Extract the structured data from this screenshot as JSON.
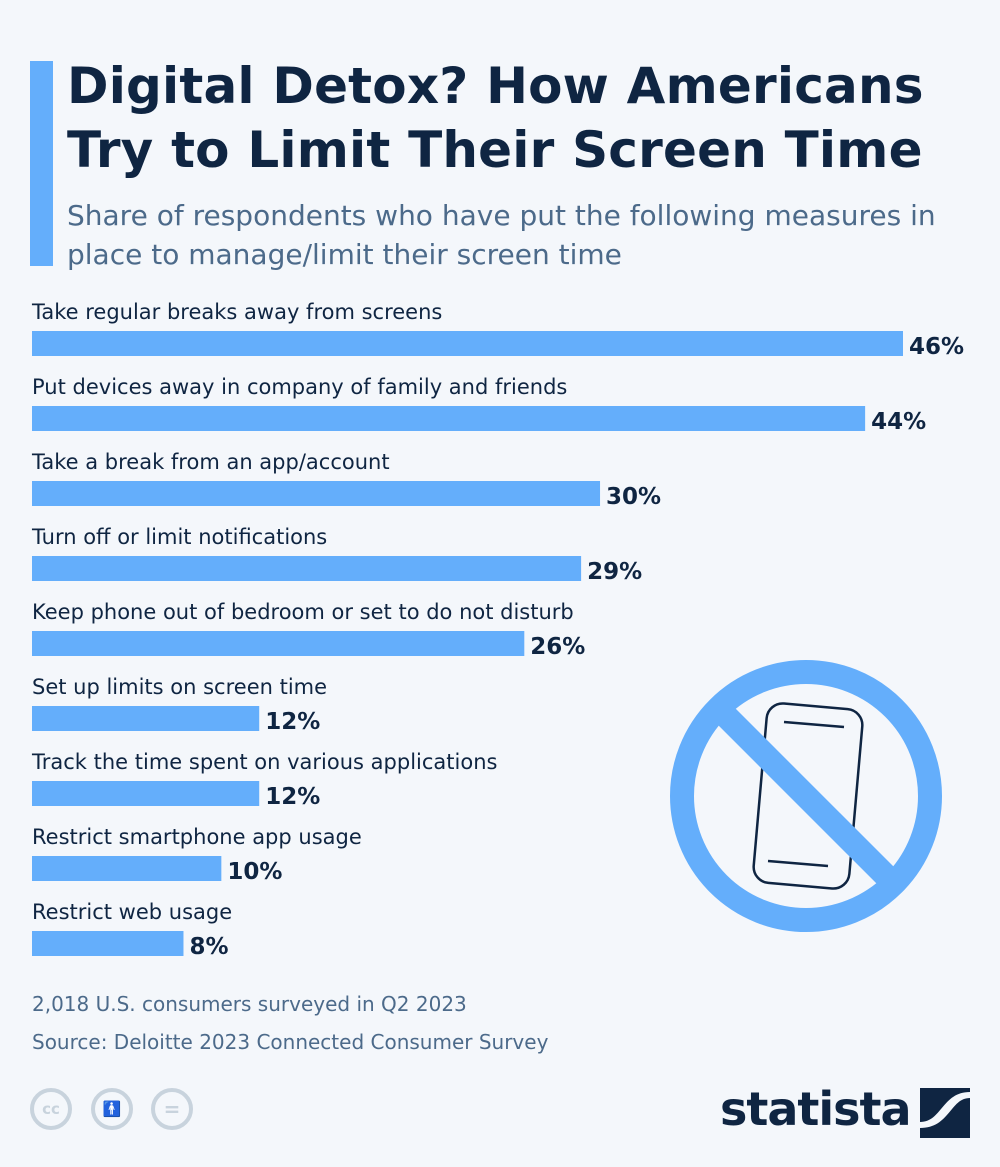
{
  "header": {
    "title": "Digital Detox? How Americans Try to Limit Their Screen Time",
    "subtitle": "Share of respondents who have put the following measures in place to manage/limit their screen time"
  },
  "chart_data": {
    "type": "bar",
    "orientation": "horizontal",
    "categories": [
      "Take regular breaks away from screens",
      "Put devices away in company of family and friends",
      "Take a break from an app/account",
      "Turn off or limit notifications",
      "Keep phone out of bedroom or set to do not disturb",
      "Set up limits on screen time",
      "Track the time spent on various applications",
      "Restrict smartphone app usage",
      "Restrict web usage"
    ],
    "values": [
      46,
      44,
      30,
      29,
      26,
      12,
      12,
      10,
      8
    ],
    "value_labels": [
      "46%",
      "44%",
      "30%",
      "29%",
      "26%",
      "12%",
      "12%",
      "10%",
      "8%"
    ],
    "unit": "%",
    "grid": false,
    "bar_color": "#64aefb"
  },
  "footer": {
    "note": "2,018 U.S. consumers surveyed in Q2 2023",
    "source": "Source: Deloitte 2023 Connected Consumer Survey",
    "logo": "statista",
    "license_icons": [
      "cc-icon",
      "attribution-icon",
      "no-derivatives-icon"
    ]
  },
  "illustration": {
    "icon": "no-phone-icon",
    "color": "#64aefb"
  }
}
